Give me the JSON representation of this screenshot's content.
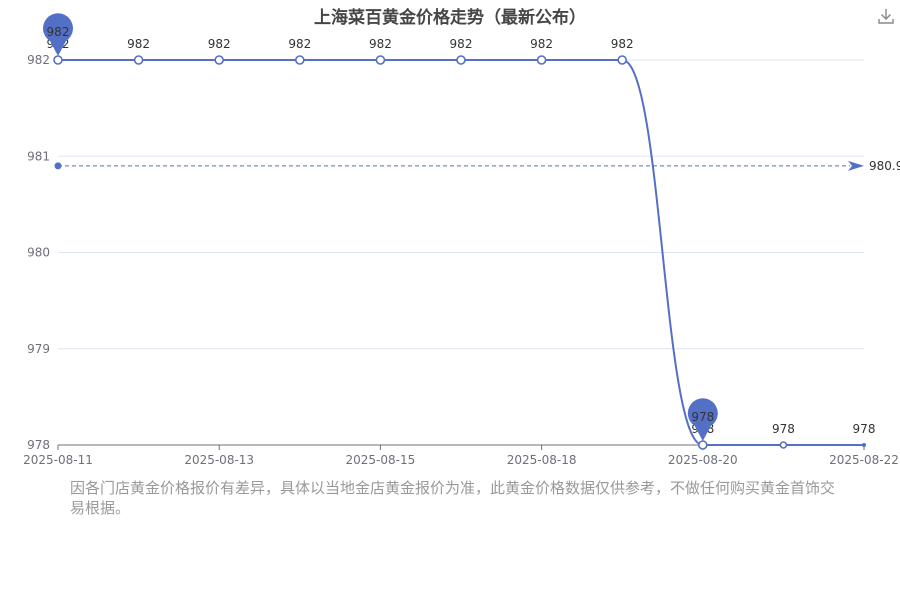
{
  "header": {
    "title": "上海菜百黄金价格走势（最新公布）"
  },
  "toolbar": {
    "download_icon": "download-icon"
  },
  "colors": {
    "series": "#5470c6",
    "axis_text": "#6e7079",
    "grid": "#e0e6f1"
  },
  "chart_data": {
    "type": "line",
    "title": "上海菜百黄金价格走势（最新公布）",
    "x_tick_labels": [
      "2025-08-11",
      "2025-08-13",
      "2025-08-15",
      "2025-08-18",
      "2025-08-20",
      "2025-08-22"
    ],
    "y_ticks": [
      978,
      979,
      980,
      981,
      982
    ],
    "ylim": [
      978,
      982
    ],
    "smooth": true,
    "grid": true,
    "series": [
      {
        "values": [
          982,
          982,
          982,
          982,
          982,
          982,
          982,
          982,
          978,
          978,
          978
        ],
        "data_labels": [
          "982",
          "982",
          "982",
          "982",
          "982",
          "982",
          "982",
          "982",
          "978",
          "978",
          "978"
        ]
      }
    ],
    "markers": {
      "max": {
        "index": 0,
        "value": "982"
      },
      "min": {
        "index": 8,
        "value": "978"
      }
    },
    "average_line": {
      "value": 980.9,
      "label": "980.9"
    }
  },
  "footer": {
    "note": "因各门店黄金价格报价有差异，具体以当地金店黄金报价为准，此黄金价格数据仅供参考，不做任何购买黄金首饰交易根据。"
  }
}
